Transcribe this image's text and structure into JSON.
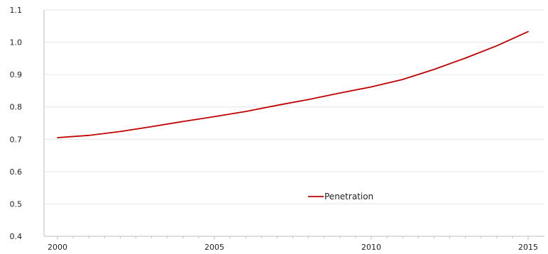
{
  "chart_data": {
    "type": "line",
    "x": [
      2000,
      2001,
      2002,
      2003,
      2004,
      2005,
      2006,
      2007,
      2008,
      2009,
      2010,
      2011,
      2012,
      2013,
      2014,
      2015
    ],
    "series": [
      {
        "name": "Penetration",
        "color": "#c00000",
        "values": [
          0.705,
          0.712,
          0.724,
          0.739,
          0.755,
          0.77,
          0.786,
          0.805,
          0.823,
          0.843,
          0.862,
          0.885,
          0.916,
          0.951,
          0.989,
          1.033
        ]
      }
    ],
    "x_ticks": [
      "2000",
      "2005",
      "2010",
      "2015"
    ],
    "y_ticks": [
      "0.4",
      "0.5",
      "0.6",
      "0.7",
      "0.8",
      "0.9",
      "1.0",
      "1.1"
    ],
    "xlim": [
      2000,
      2015
    ],
    "ylim": [
      0.4,
      1.1
    ],
    "grid": "horizontal",
    "gridline_color": "#e6e6e6",
    "axis_color": "#bfbfbf",
    "legend": {
      "position": "bottom-center",
      "entries": [
        "Penetration"
      ]
    },
    "title": "",
    "xlabel": "",
    "ylabel": ""
  }
}
